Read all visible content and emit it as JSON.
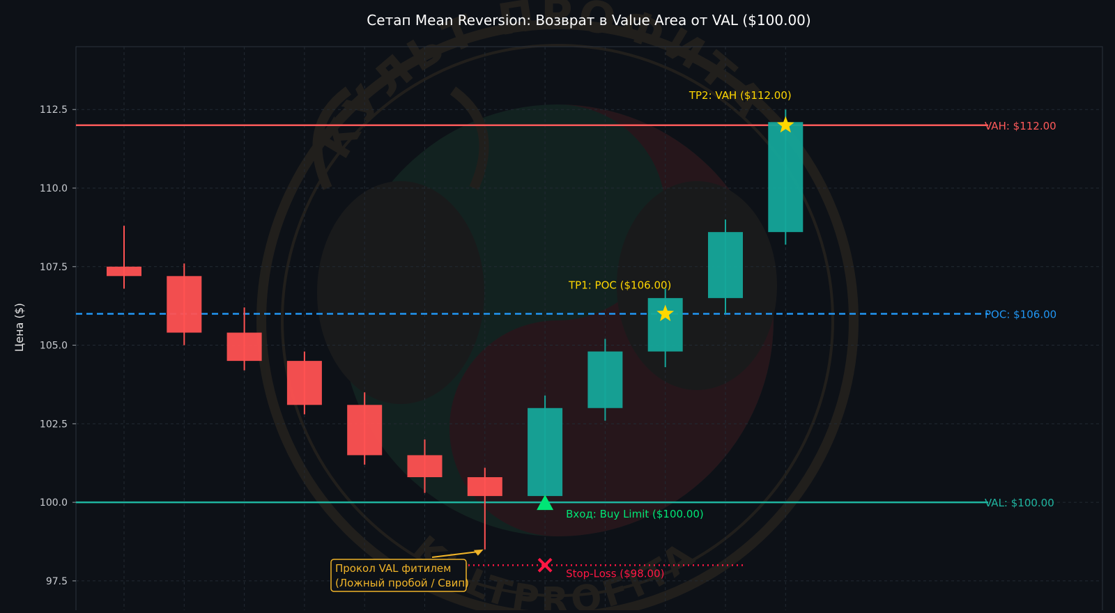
{
  "chart_data": {
    "type": "candlestick",
    "title": "Сетап Mean Reversion: Возврат в Value Area от VAL ($100.00)",
    "ylabel": "Цена ($)",
    "xlabel": "",
    "ylim": [
      96.5,
      114.5
    ],
    "yticks": [
      97.5,
      100.0,
      102.5,
      105.0,
      107.5,
      110.0,
      112.5
    ],
    "ytick_labels": [
      "97.5",
      "100.0",
      "102.5",
      "105.0",
      "107.5",
      "110.0",
      "112.5"
    ],
    "grid": true,
    "candles": [
      {
        "open": 107.5,
        "high": 108.8,
        "low": 106.8,
        "close": 107.2
      },
      {
        "open": 107.2,
        "high": 107.6,
        "low": 105.0,
        "close": 105.4
      },
      {
        "open": 105.4,
        "high": 106.2,
        "low": 104.2,
        "close": 104.5
      },
      {
        "open": 104.5,
        "high": 104.8,
        "low": 102.8,
        "close": 103.1
      },
      {
        "open": 103.1,
        "high": 103.5,
        "low": 101.2,
        "close": 101.5
      },
      {
        "open": 101.5,
        "high": 102.0,
        "low": 100.3,
        "close": 100.8
      },
      {
        "open": 100.8,
        "high": 101.1,
        "low": 98.5,
        "close": 100.2
      },
      {
        "open": 100.2,
        "high": 103.4,
        "low": 100.0,
        "close": 103.0
      },
      {
        "open": 103.0,
        "high": 105.2,
        "low": 102.6,
        "close": 104.8
      },
      {
        "open": 104.8,
        "high": 106.8,
        "low": 104.3,
        "close": 106.5
      },
      {
        "open": 106.5,
        "high": 109.0,
        "low": 106.0,
        "close": 108.6
      },
      {
        "open": 108.6,
        "high": 112.5,
        "low": 108.2,
        "close": 112.1
      }
    ],
    "levels": [
      {
        "name": "VAH",
        "value": 112.0,
        "label": "VAH: $112.00",
        "color": "#ff5a5a",
        "style": "solid"
      },
      {
        "name": "POC",
        "value": 106.0,
        "label": "POC: $106.00",
        "color": "#2196f3",
        "style": "dashed"
      },
      {
        "name": "VAL",
        "value": 100.0,
        "label": "VAL: $100.00",
        "color": "#1fb5a0",
        "style": "solid"
      }
    ],
    "stop_loss": {
      "value": 98.0,
      "from_index": 5.4,
      "to_index": 10.3,
      "label": "Stop-Loss ($98.00)",
      "color": "#ff1744"
    },
    "markers": [
      {
        "type": "entry",
        "index": 7,
        "value": 100.0,
        "label": "Вход: Buy Limit ($100.00)",
        "color": "#00e676"
      },
      {
        "type": "stop",
        "index": 7,
        "value": 98.0,
        "color": "#ff1744"
      },
      {
        "type": "tp1",
        "index": 9,
        "value": 106.0,
        "label": "TP1: POC ($106.00)",
        "color": "#ffd700"
      },
      {
        "type": "tp2",
        "index": 11,
        "value": 112.0,
        "label": "TP2: VAH ($112.00)",
        "color": "#ffd700"
      }
    ],
    "annotation": {
      "lines": [
        "Прокол VAL фитилем",
        "(Ложный пробой / Свип)"
      ],
      "target_index": 6,
      "target_value": 98.5,
      "color": "#f0b429"
    },
    "watermark": {
      "text_top": "КУЛЬТ ПРОФИТА",
      "text_bottom": "KULTPROFITA"
    },
    "colors": {
      "background": "#0d1117",
      "up": "#15a69a",
      "down": "#ff5252",
      "text": "#e6e6e6",
      "grid": "#222a33"
    }
  }
}
